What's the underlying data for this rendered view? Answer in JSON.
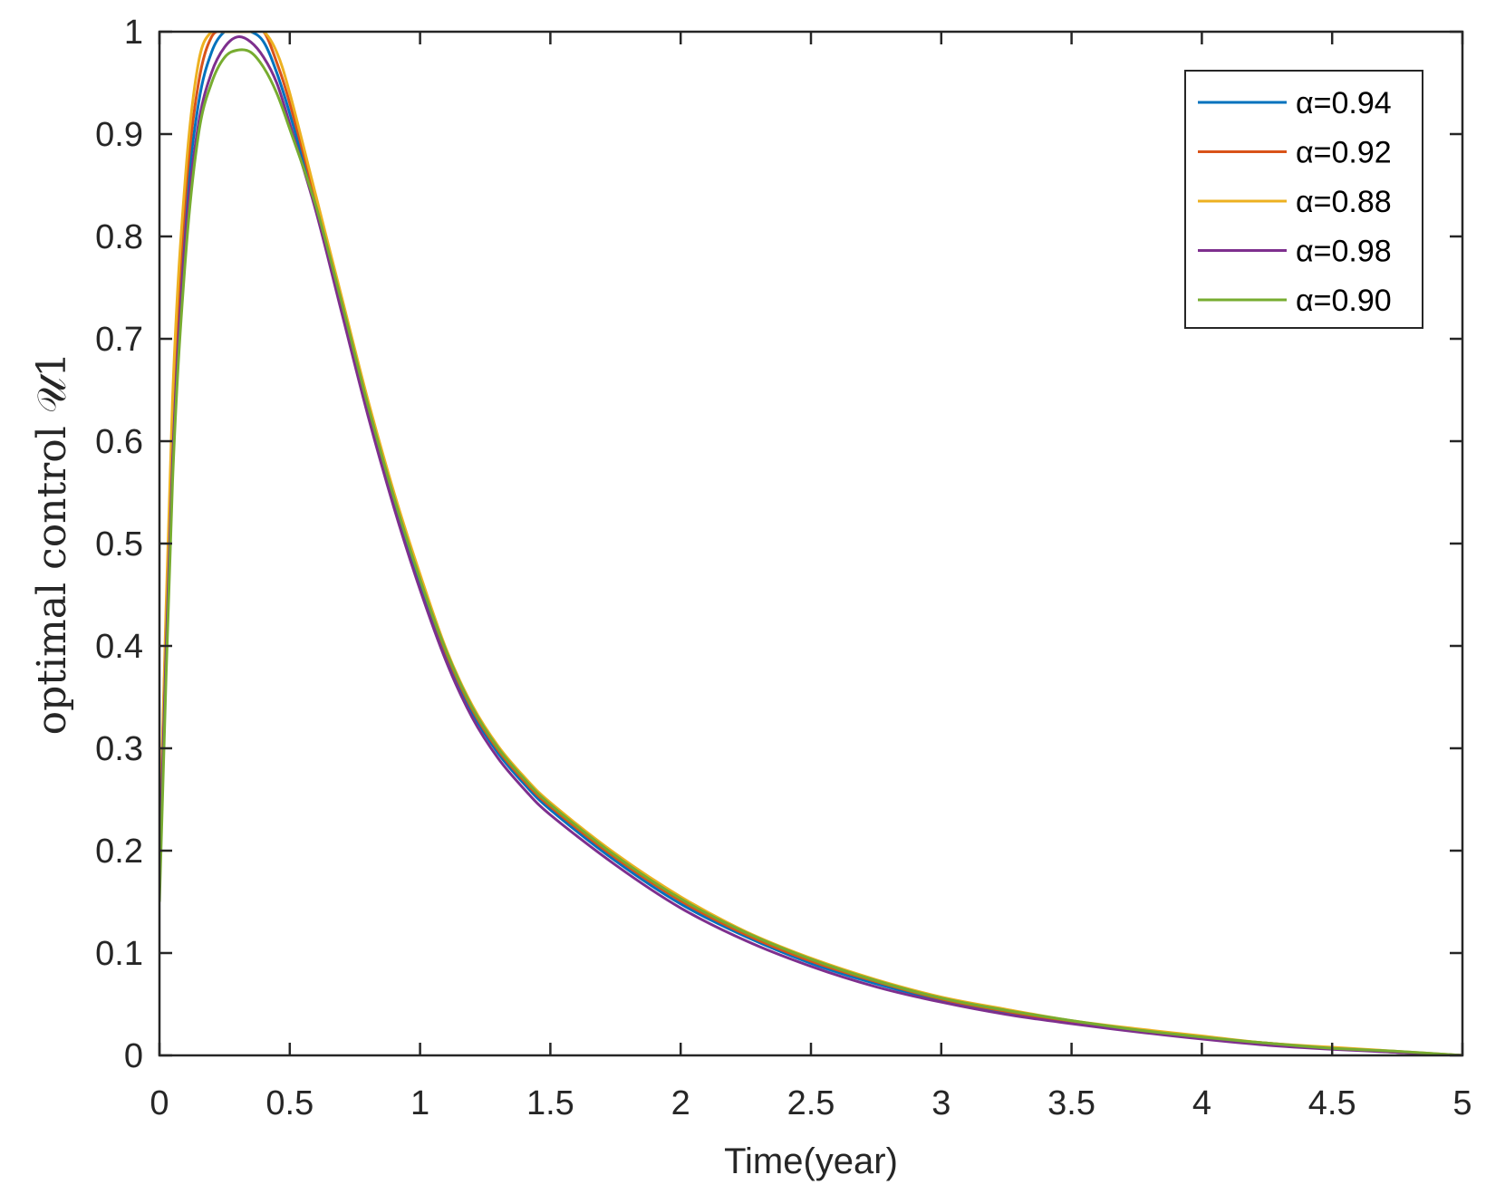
{
  "chart_data": {
    "type": "line",
    "xlabel": "Time(year)",
    "ylabel": "optimal control 𝒰1",
    "xlim": [
      0,
      5
    ],
    "ylim": [
      0,
      1
    ],
    "xticks": [
      0,
      0.5,
      1,
      1.5,
      2,
      2.5,
      3,
      3.5,
      4,
      4.5,
      5
    ],
    "xtick_labels": [
      "0",
      "0.5",
      "1",
      "1.5",
      "2",
      "2.5",
      "3",
      "3.5",
      "4",
      "4.5",
      "5"
    ],
    "yticks": [
      0,
      0.1,
      0.2,
      0.3,
      0.4,
      0.5,
      0.6,
      0.7,
      0.8,
      0.9,
      1
    ],
    "ytick_labels": [
      "0",
      "0.1",
      "0.2",
      "0.3",
      "0.4",
      "0.5",
      "0.6",
      "0.7",
      "0.8",
      "0.9",
      "1"
    ],
    "grid": false,
    "legend_position": "top-right",
    "x": [
      0,
      0.05,
      0.1,
      0.15,
      0.2,
      0.25,
      0.3,
      0.35,
      0.4,
      0.45,
      0.5,
      0.6,
      0.7,
      0.8,
      0.9,
      1.0,
      1.1,
      1.2,
      1.3,
      1.4,
      1.5,
      1.75,
      2.0,
      2.25,
      2.5,
      2.75,
      3.0,
      3.25,
      3.5,
      3.75,
      4.0,
      4.25,
      4.5,
      4.75,
      5.0
    ],
    "series": [
      {
        "name": "α=0.94",
        "color": "#0072BD",
        "values": [
          0.2,
          0.6,
          0.82,
          0.93,
          0.98,
          1.0,
          1.0,
          1.0,
          0.99,
          0.96,
          0.92,
          0.83,
          0.73,
          0.63,
          0.54,
          0.46,
          0.39,
          0.335,
          0.295,
          0.265,
          0.24,
          0.19,
          0.148,
          0.116,
          0.09,
          0.07,
          0.054,
          0.042,
          0.032,
          0.024,
          0.017,
          0.011,
          0.007,
          0.003,
          0.0
        ]
      },
      {
        "name": "α=0.92",
        "color": "#D95319",
        "values": [
          0.2,
          0.62,
          0.84,
          0.95,
          0.995,
          1.0,
          1.0,
          1.0,
          1.0,
          0.97,
          0.93,
          0.835,
          0.735,
          0.635,
          0.545,
          0.465,
          0.393,
          0.338,
          0.298,
          0.268,
          0.243,
          0.193,
          0.151,
          0.118,
          0.092,
          0.072,
          0.055,
          0.043,
          0.033,
          0.025,
          0.018,
          0.012,
          0.007,
          0.003,
          0.0
        ]
      },
      {
        "name": "α=0.88",
        "color": "#EDB120",
        "values": [
          0.2,
          0.64,
          0.86,
          0.97,
          1.0,
          1.0,
          1.0,
          1.0,
          1.0,
          0.98,
          0.94,
          0.84,
          0.74,
          0.64,
          0.55,
          0.47,
          0.397,
          0.342,
          0.302,
          0.272,
          0.247,
          0.197,
          0.155,
          0.121,
          0.095,
          0.074,
          0.057,
          0.045,
          0.034,
          0.026,
          0.019,
          0.012,
          0.008,
          0.004,
          0.0
        ]
      },
      {
        "name": "α=0.98",
        "color": "#7E2F8E",
        "values": [
          0.18,
          0.58,
          0.8,
          0.91,
          0.96,
          0.985,
          0.995,
          0.99,
          0.975,
          0.95,
          0.91,
          0.825,
          0.725,
          0.625,
          0.535,
          0.455,
          0.385,
          0.33,
          0.29,
          0.26,
          0.235,
          0.186,
          0.144,
          0.112,
          0.087,
          0.067,
          0.052,
          0.04,
          0.031,
          0.023,
          0.016,
          0.01,
          0.006,
          0.003,
          0.0
        ]
      },
      {
        "name": "α=0.90",
        "color": "#77AC30",
        "values": [
          0.15,
          0.56,
          0.78,
          0.9,
          0.95,
          0.975,
          0.982,
          0.98,
          0.965,
          0.94,
          0.905,
          0.83,
          0.735,
          0.635,
          0.545,
          0.465,
          0.395,
          0.34,
          0.3,
          0.27,
          0.245,
          0.195,
          0.153,
          0.12,
          0.094,
          0.073,
          0.056,
          0.044,
          0.034,
          0.025,
          0.018,
          0.012,
          0.007,
          0.004,
          0.0
        ]
      }
    ]
  }
}
